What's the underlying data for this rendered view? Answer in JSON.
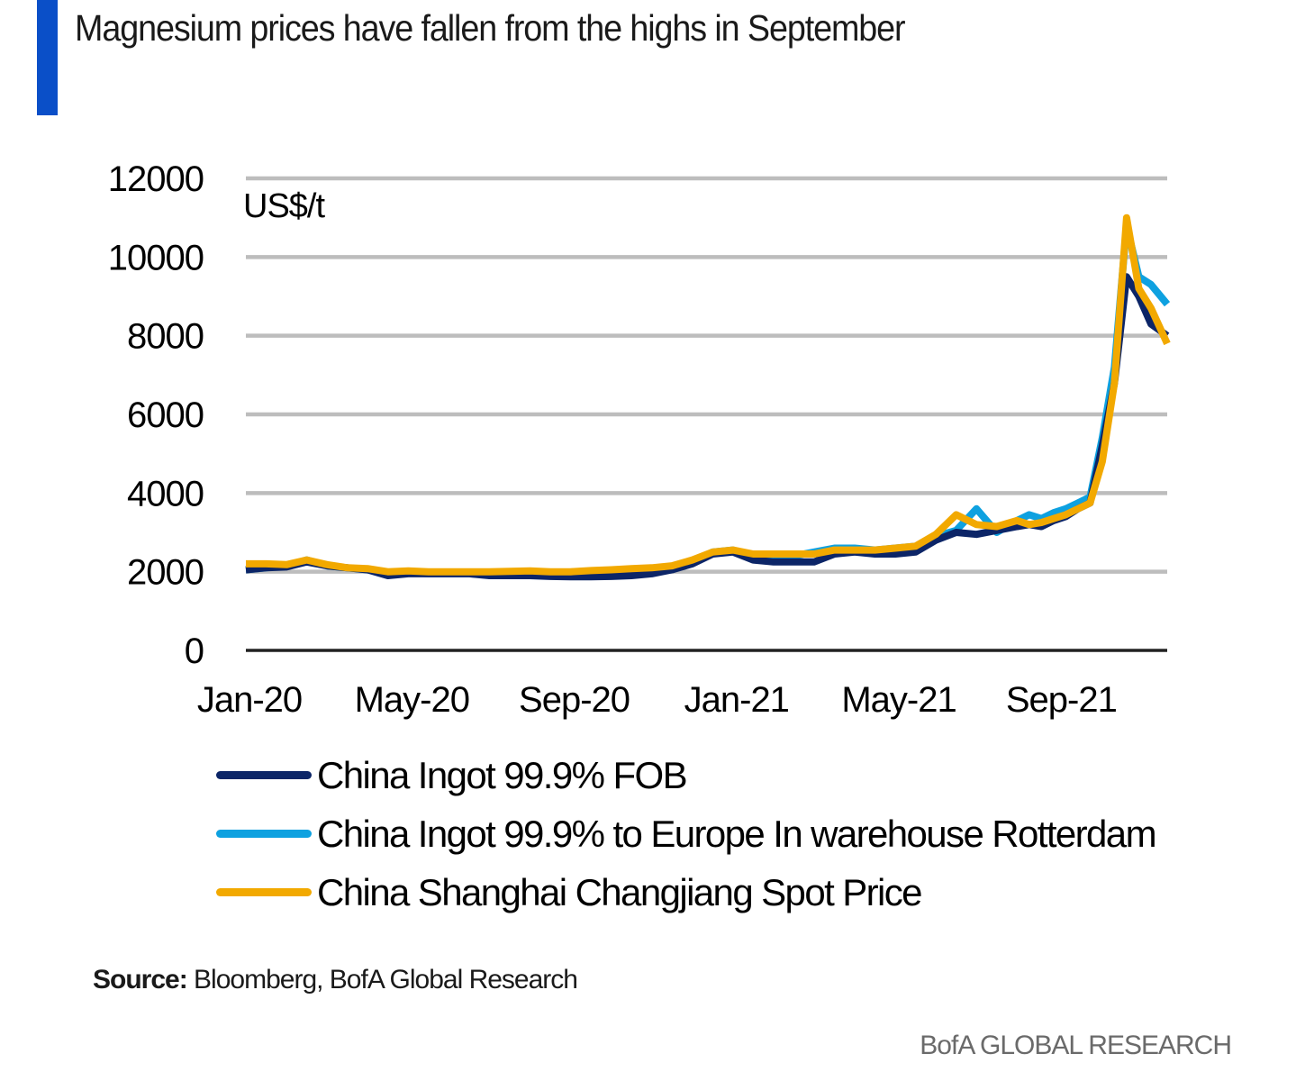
{
  "header": {
    "title": "Magnesium prices have fallen from the highs in September",
    "accent_color": "#0a4fc8"
  },
  "footer": {
    "source_label": "Source:",
    "source_text": "Bloomberg, BofA Global Research",
    "brand": "BofA GLOBAL RESEARCH"
  },
  "chart_data": {
    "type": "line",
    "title": "Magnesium prices have fallen from the highs in September",
    "xlabel": "",
    "ylabel": "US$/t",
    "unit_label": "US$/t",
    "ylim": [
      0,
      12000
    ],
    "yticks": [
      0,
      2000,
      4000,
      6000,
      8000,
      10000,
      12000
    ],
    "ytick_labels": [
      "0",
      "2000",
      "4000",
      "6000",
      "8000",
      "10000",
      "12000"
    ],
    "xlim_months": [
      0,
      22.7
    ],
    "xticks_months": [
      0,
      4,
      8,
      12,
      16,
      20
    ],
    "xtick_labels": [
      "Jan-20",
      "May-20",
      "Sep-20",
      "Jan-21",
      "May-21",
      "Sep-21"
    ],
    "grid": true,
    "legend_position": "bottom",
    "x_unit": "months since Jan-2020",
    "x": [
      0,
      0.5,
      1,
      1.5,
      2,
      2.5,
      3,
      3.5,
      4,
      4.5,
      5,
      5.5,
      6,
      6.5,
      7,
      7.5,
      8,
      8.5,
      9,
      9.5,
      10,
      10.5,
      11,
      11.5,
      12,
      12.5,
      13,
      13.5,
      14,
      14.5,
      15,
      15.5,
      16,
      16.5,
      17,
      17.5,
      18,
      18.5,
      19,
      19.3,
      19.6,
      19.9,
      20.2,
      20.5,
      20.8,
      21.1,
      21.4,
      21.7,
      22,
      22.3,
      22.7
    ],
    "series": [
      {
        "name": "China Ingot 99.9% FOB",
        "color": "#0c2567",
        "values": [
          2050,
          2100,
          2120,
          2250,
          2150,
          2100,
          2050,
          1900,
          1950,
          1950,
          1950,
          1950,
          1900,
          1900,
          1900,
          1880,
          1870,
          1870,
          1880,
          1900,
          1950,
          2050,
          2200,
          2450,
          2500,
          2300,
          2250,
          2250,
          2250,
          2450,
          2500,
          2450,
          2450,
          2500,
          2800,
          3000,
          2950,
          3050,
          3150,
          3200,
          3150,
          3300,
          3400,
          3600,
          3750,
          5200,
          6800,
          9500,
          9000,
          8300,
          8000
        ]
      },
      {
        "name": "China Ingot 99.9% to Europe In warehouse Rotterdam",
        "color": "#0ea1e0",
        "values": [
          2050,
          2100,
          2150,
          2300,
          2150,
          2100,
          2050,
          1950,
          1980,
          1950,
          1950,
          1950,
          1920,
          1920,
          1910,
          1900,
          1900,
          1900,
          1920,
          1950,
          2000,
          2100,
          2250,
          2500,
          2550,
          2400,
          2400,
          2400,
          2500,
          2600,
          2600,
          2550,
          2600,
          2650,
          2900,
          3050,
          3600,
          3000,
          3300,
          3450,
          3350,
          3500,
          3600,
          3750,
          3900,
          5400,
          7200,
          10800,
          9500,
          9300,
          8800
        ]
      },
      {
        "name": "China Shanghai Changjiang Spot Price",
        "color": "#f2a900",
        "values": [
          2200,
          2200,
          2180,
          2300,
          2180,
          2100,
          2080,
          2000,
          2020,
          2000,
          2000,
          2000,
          2000,
          2010,
          2020,
          2000,
          2000,
          2030,
          2050,
          2080,
          2100,
          2150,
          2300,
          2500,
          2550,
          2450,
          2450,
          2450,
          2450,
          2550,
          2550,
          2550,
          2600,
          2650,
          2950,
          3450,
          3200,
          3150,
          3300,
          3200,
          3250,
          3350,
          3450,
          3600,
          3750,
          4800,
          6800,
          11000,
          9200,
          8700,
          7800
        ]
      }
    ]
  }
}
